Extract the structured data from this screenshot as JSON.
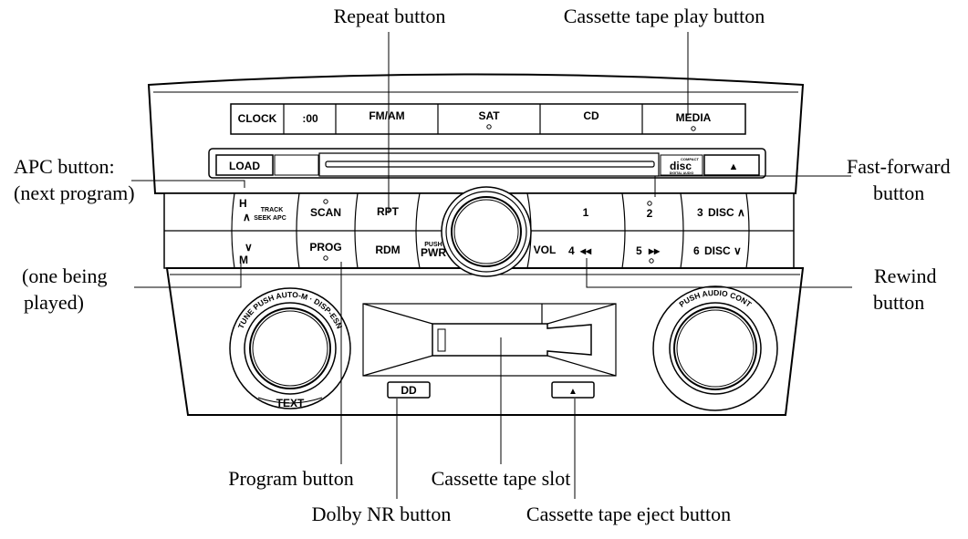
{
  "callouts": {
    "repeat": "Repeat button",
    "cassette_play": "Cassette tape play button",
    "apc_line1": "APC button:",
    "apc_line2": "(next program)",
    "fast_forward_line1": "Fast-forward",
    "fast_forward_line2": "button",
    "one_playing_line1": "(one being",
    "one_playing_line2": "played)",
    "rewind_line1": "Rewind",
    "rewind_line2": "button",
    "program": "Program button",
    "cassette_slot": "Cassette tape slot",
    "dolby": "Dolby NR button",
    "cassette_eject": "Cassette tape eject button"
  },
  "top_row": {
    "clock": "CLOCK",
    "zero": ":00",
    "fmam": "FM/AM",
    "sat": "SAT",
    "cd": "CD",
    "media": "MEDIA"
  },
  "cd_row": {
    "load": "LOAD",
    "disc_logo_top": "COMPACT",
    "disc_logo_main": "disc",
    "disc_logo_bottom": "DIGITAL AUDIO",
    "eject_symbol": "▲"
  },
  "row1": {
    "h": "H",
    "up_arrow": "∧",
    "track": "TRACK",
    "seek_apc": "SEEK APC",
    "scan": "SCAN",
    "rpt": "RPT",
    "preset1": "1",
    "preset2": "2",
    "preset3": "3",
    "disc_up": "DISC ∧"
  },
  "row2": {
    "down_arrow": "∨",
    "m": "M",
    "prog": "PROG",
    "rdm": "RDM",
    "push": "PUSH",
    "pwr": "PWR",
    "vol": "VOL",
    "preset4": "4",
    "rew_symbol": "◂◂",
    "preset5": "5",
    "ff_symbol": "▸▸",
    "preset6": "6",
    "disc_down": "DISC ∨"
  },
  "tune_knob": {
    "ring_text": "TUNE PUSH AUTO-M · DISP-ESN",
    "text_label": "TEXT"
  },
  "audio_knob": {
    "ring_text": "PUSH AUDIO CONT"
  },
  "cassette": {
    "dolby_symbol": "DD",
    "eject_symbol": "▲"
  }
}
